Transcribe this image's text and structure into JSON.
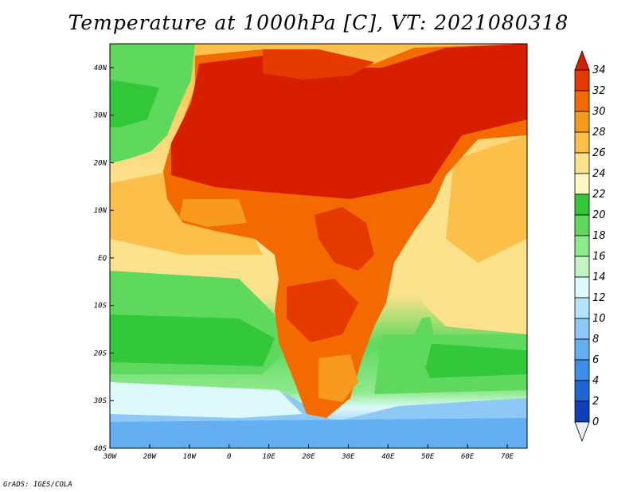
{
  "title": "Temperature at 1000hPa [C], VT: 2021080318",
  "credit": "GrADS: IGES/COLA",
  "map": {
    "lon_labels": [
      "30W",
      "20W",
      "10W",
      "0",
      "10E",
      "20E",
      "30E",
      "40E",
      "50E",
      "60E",
      "70E"
    ],
    "lat_labels": [
      "40N",
      "30N",
      "20N",
      "10N",
      "EQ",
      "10S",
      "20S",
      "30S",
      "40S"
    ],
    "lon_range": [
      -30,
      75
    ],
    "lat_range": [
      -40,
      45
    ]
  },
  "colorbar": {
    "labels": [
      "34",
      "32",
      "30",
      "28",
      "26",
      "24",
      "22",
      "20",
      "18",
      "16",
      "14",
      "12",
      "10",
      "8",
      "6",
      "4",
      "2",
      "0"
    ],
    "colors": [
      "#d71e00",
      "#e43a00",
      "#f26a00",
      "#f79a1e",
      "#fbbf4a",
      "#fde28e",
      "#fff8c4",
      "#33c83a",
      "#5ed95e",
      "#8ee88c",
      "#c2f4c2",
      "#def9fb",
      "#b6e2fb",
      "#8ec8f6",
      "#64aef2",
      "#3c8ee8",
      "#2064d6",
      "#1040b8",
      "#0a1f80"
    ]
  }
}
